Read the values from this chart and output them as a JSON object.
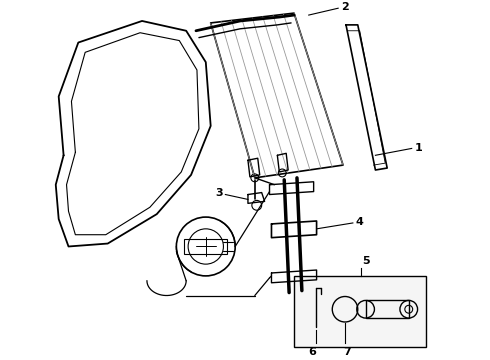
{
  "bg_color": "#ffffff",
  "line_color": "#000000",
  "figsize": [
    4.9,
    3.6
  ],
  "dpi": 100,
  "label_fontsize": 8
}
